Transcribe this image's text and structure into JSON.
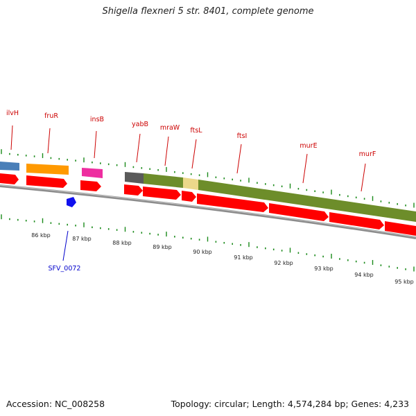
{
  "title": "Shigella flexneri 5 str. 8401, complete genome",
  "footer": {
    "accession": "Accession: NC_008258",
    "summary": "Topology: circular; Length: 4,574,284 bp; Genes: 4,233"
  },
  "colors": {
    "label_red": "#cc0000",
    "label_blue": "#0000cc",
    "tick_green": "#1a8a1a",
    "backbone": "#8c8c8c",
    "cds_red": "#ff0000",
    "steel_blue": "#4a7fb8",
    "orange": "#ff9900",
    "magenta": "#ee2ea0",
    "dark_grey": "#5a5a5a",
    "olive": "#6d8d2a",
    "khaki": "#ecd88a",
    "blue_feature": "#1010ee"
  },
  "kbp_ticks": [
    {
      "label": "86 kbp"
    },
    {
      "label": "87 kbp"
    },
    {
      "label": "88 kbp"
    },
    {
      "label": "89 kbp"
    },
    {
      "label": "90 kbp"
    },
    {
      "label": "91 kbp"
    },
    {
      "label": "92 kbp"
    },
    {
      "label": "93 kbp"
    },
    {
      "label": "94 kbp"
    },
    {
      "label": "95 kbp"
    }
  ],
  "gene_labels": [
    {
      "text": "ilvH",
      "color": "label_red"
    },
    {
      "text": "fruR",
      "color": "label_red"
    },
    {
      "text": "insB",
      "color": "label_red"
    },
    {
      "text": "yabB",
      "color": "label_red"
    },
    {
      "text": "mraW",
      "color": "label_red"
    },
    {
      "text": "ftsL",
      "color": "label_red"
    },
    {
      "text": "ftsI",
      "color": "label_red"
    },
    {
      "text": "murE",
      "color": "label_red"
    },
    {
      "text": "murF",
      "color": "label_red"
    },
    {
      "text": "SFV_0072",
      "color": "label_blue"
    }
  ]
}
